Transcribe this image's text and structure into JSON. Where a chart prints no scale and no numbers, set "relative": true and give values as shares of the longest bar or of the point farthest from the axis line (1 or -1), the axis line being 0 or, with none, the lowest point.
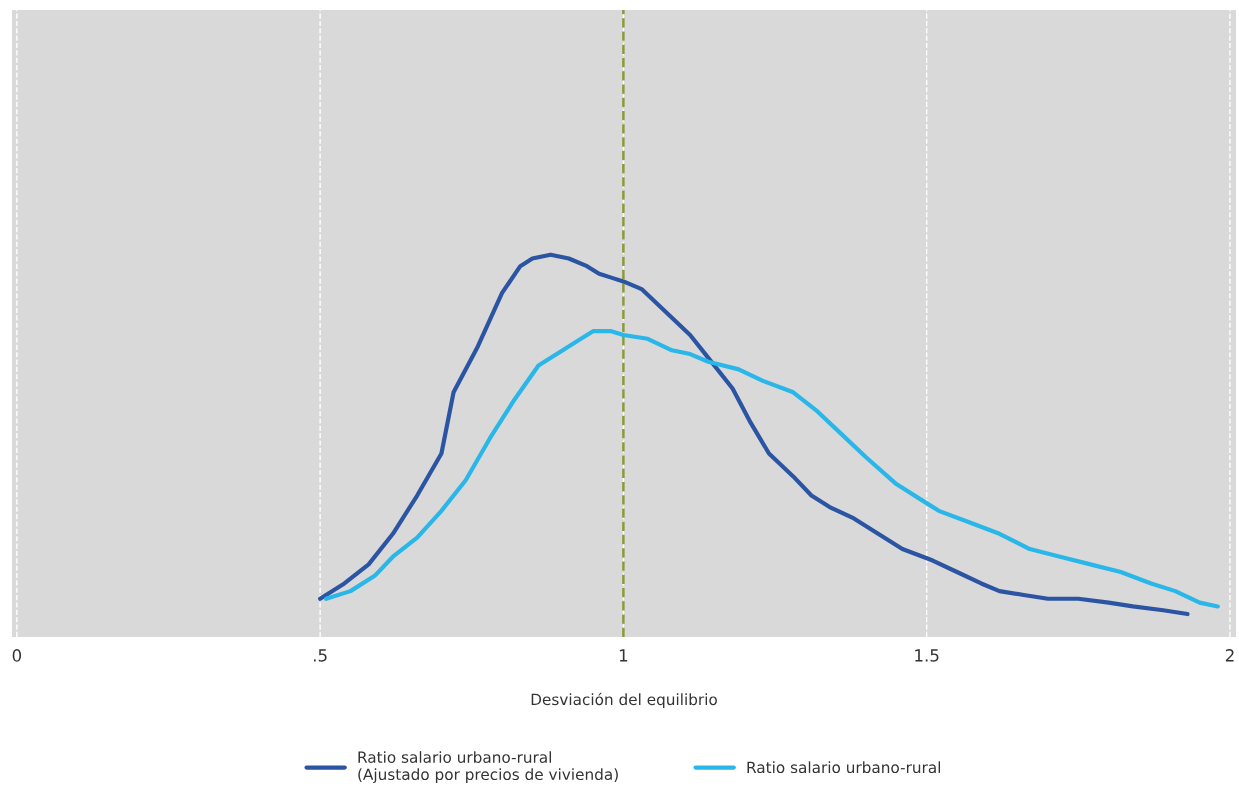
{
  "chart_data": {
    "type": "line",
    "relative": true,
    "xlabel": "Desviación del equilibrio",
    "xlim": [
      -0.008,
      2.01
    ],
    "xticks": [
      0,
      {
        "value": 0.5,
        "label": ".5"
      },
      1,
      1.5,
      2
    ],
    "grid": "x",
    "legend": "bottom",
    "line_style": "solid",
    "marker": "none",
    "ref_lines": [
      {
        "axis": "x",
        "value": 1,
        "color": "#8a9a3a",
        "line_style": "dashed"
      }
    ],
    "series": [
      {
        "name": "Ratio salario urbano-rural\n(Ajustado por precios de vivienda)",
        "color": "#2b55a3",
        "x": [
          0.5,
          0.54,
          0.58,
          0.62,
          0.66,
          0.7,
          0.72,
          0.76,
          0.8,
          0.83,
          0.85,
          0.88,
          0.91,
          0.94,
          0.96,
          0.98,
          1.0,
          1.03,
          1.05,
          1.07,
          1.11,
          1.14,
          1.18,
          1.21,
          1.24,
          1.28,
          1.31,
          1.34,
          1.38,
          1.42,
          1.46,
          1.51,
          1.55,
          1.59,
          1.62,
          1.66,
          1.7,
          1.75,
          1.8,
          1.84,
          1.89,
          1.93
        ],
        "values": [
          0.1,
          0.14,
          0.19,
          0.27,
          0.37,
          0.48,
          0.64,
          0.76,
          0.9,
          0.97,
          0.99,
          1.0,
          0.99,
          0.97,
          0.95,
          0.94,
          0.93,
          0.91,
          0.88,
          0.85,
          0.79,
          0.73,
          0.65,
          0.56,
          0.48,
          0.42,
          0.37,
          0.34,
          0.31,
          0.27,
          0.23,
          0.2,
          0.17,
          0.14,
          0.12,
          0.11,
          0.1,
          0.1,
          0.09,
          0.08,
          0.07,
          0.06
        ]
      },
      {
        "name": "Ratio salario urbano-rural",
        "color": "#29b6e8",
        "x": [
          0.51,
          0.55,
          0.59,
          0.62,
          0.66,
          0.7,
          0.74,
          0.78,
          0.82,
          0.86,
          0.9,
          0.93,
          0.95,
          0.98,
          1.0,
          1.04,
          1.08,
          1.11,
          1.14,
          1.19,
          1.23,
          1.28,
          1.32,
          1.36,
          1.4,
          1.45,
          1.49,
          1.52,
          1.57,
          1.62,
          1.67,
          1.72,
          1.77,
          1.82,
          1.87,
          1.91,
          1.95,
          1.98
        ],
        "values": [
          0.1,
          0.12,
          0.16,
          0.21,
          0.26,
          0.33,
          0.41,
          0.52,
          0.62,
          0.71,
          0.75,
          0.78,
          0.8,
          0.8,
          0.79,
          0.78,
          0.75,
          0.74,
          0.72,
          0.7,
          0.67,
          0.64,
          0.59,
          0.53,
          0.47,
          0.4,
          0.36,
          0.33,
          0.3,
          0.27,
          0.23,
          0.21,
          0.19,
          0.17,
          0.14,
          0.12,
          0.09,
          0.08
        ]
      }
    ]
  }
}
